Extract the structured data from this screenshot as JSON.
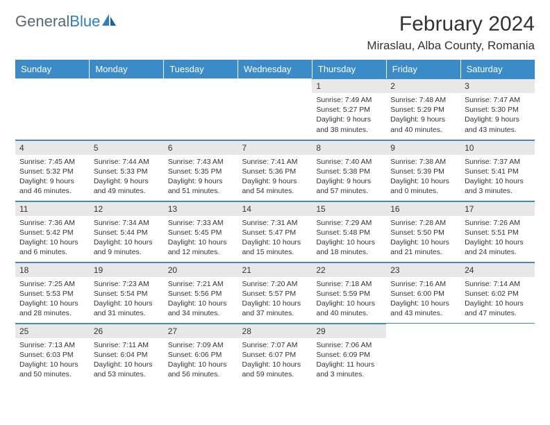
{
  "logo": {
    "part1": "General",
    "part2": "Blue"
  },
  "title": "February 2024",
  "location": "Miraslau, Alba County, Romania",
  "colors": {
    "header_bg": "#3b8bc9",
    "header_text": "#ffffff",
    "daynum_bg": "#e8e8e8",
    "border": "#3b8bc9",
    "logo_gray": "#5a6670",
    "logo_blue": "#2f7fbf",
    "text": "#333333",
    "background": "#ffffff"
  },
  "weekdays": [
    "Sunday",
    "Monday",
    "Tuesday",
    "Wednesday",
    "Thursday",
    "Friday",
    "Saturday"
  ],
  "weeks": [
    [
      null,
      null,
      null,
      null,
      {
        "d": "1",
        "sr": "7:49 AM",
        "ss": "5:27 PM",
        "dl": "9 hours and 38 minutes."
      },
      {
        "d": "2",
        "sr": "7:48 AM",
        "ss": "5:29 PM",
        "dl": "9 hours and 40 minutes."
      },
      {
        "d": "3",
        "sr": "7:47 AM",
        "ss": "5:30 PM",
        "dl": "9 hours and 43 minutes."
      }
    ],
    [
      {
        "d": "4",
        "sr": "7:45 AM",
        "ss": "5:32 PM",
        "dl": "9 hours and 46 minutes."
      },
      {
        "d": "5",
        "sr": "7:44 AM",
        "ss": "5:33 PM",
        "dl": "9 hours and 49 minutes."
      },
      {
        "d": "6",
        "sr": "7:43 AM",
        "ss": "5:35 PM",
        "dl": "9 hours and 51 minutes."
      },
      {
        "d": "7",
        "sr": "7:41 AM",
        "ss": "5:36 PM",
        "dl": "9 hours and 54 minutes."
      },
      {
        "d": "8",
        "sr": "7:40 AM",
        "ss": "5:38 PM",
        "dl": "9 hours and 57 minutes."
      },
      {
        "d": "9",
        "sr": "7:38 AM",
        "ss": "5:39 PM",
        "dl": "10 hours and 0 minutes."
      },
      {
        "d": "10",
        "sr": "7:37 AM",
        "ss": "5:41 PM",
        "dl": "10 hours and 3 minutes."
      }
    ],
    [
      {
        "d": "11",
        "sr": "7:36 AM",
        "ss": "5:42 PM",
        "dl": "10 hours and 6 minutes."
      },
      {
        "d": "12",
        "sr": "7:34 AM",
        "ss": "5:44 PM",
        "dl": "10 hours and 9 minutes."
      },
      {
        "d": "13",
        "sr": "7:33 AM",
        "ss": "5:45 PM",
        "dl": "10 hours and 12 minutes."
      },
      {
        "d": "14",
        "sr": "7:31 AM",
        "ss": "5:47 PM",
        "dl": "10 hours and 15 minutes."
      },
      {
        "d": "15",
        "sr": "7:29 AM",
        "ss": "5:48 PM",
        "dl": "10 hours and 18 minutes."
      },
      {
        "d": "16",
        "sr": "7:28 AM",
        "ss": "5:50 PM",
        "dl": "10 hours and 21 minutes."
      },
      {
        "d": "17",
        "sr": "7:26 AM",
        "ss": "5:51 PM",
        "dl": "10 hours and 24 minutes."
      }
    ],
    [
      {
        "d": "18",
        "sr": "7:25 AM",
        "ss": "5:53 PM",
        "dl": "10 hours and 28 minutes."
      },
      {
        "d": "19",
        "sr": "7:23 AM",
        "ss": "5:54 PM",
        "dl": "10 hours and 31 minutes."
      },
      {
        "d": "20",
        "sr": "7:21 AM",
        "ss": "5:56 PM",
        "dl": "10 hours and 34 minutes."
      },
      {
        "d": "21",
        "sr": "7:20 AM",
        "ss": "5:57 PM",
        "dl": "10 hours and 37 minutes."
      },
      {
        "d": "22",
        "sr": "7:18 AM",
        "ss": "5:59 PM",
        "dl": "10 hours and 40 minutes."
      },
      {
        "d": "23",
        "sr": "7:16 AM",
        "ss": "6:00 PM",
        "dl": "10 hours and 43 minutes."
      },
      {
        "d": "24",
        "sr": "7:14 AM",
        "ss": "6:02 PM",
        "dl": "10 hours and 47 minutes."
      }
    ],
    [
      {
        "d": "25",
        "sr": "7:13 AM",
        "ss": "6:03 PM",
        "dl": "10 hours and 50 minutes."
      },
      {
        "d": "26",
        "sr": "7:11 AM",
        "ss": "6:04 PM",
        "dl": "10 hours and 53 minutes."
      },
      {
        "d": "27",
        "sr": "7:09 AM",
        "ss": "6:06 PM",
        "dl": "10 hours and 56 minutes."
      },
      {
        "d": "28",
        "sr": "7:07 AM",
        "ss": "6:07 PM",
        "dl": "10 hours and 59 minutes."
      },
      {
        "d": "29",
        "sr": "7:06 AM",
        "ss": "6:09 PM",
        "dl": "11 hours and 3 minutes."
      },
      null,
      null
    ]
  ],
  "labels": {
    "sunrise": "Sunrise: ",
    "sunset": "Sunset: ",
    "daylight": "Daylight: "
  }
}
